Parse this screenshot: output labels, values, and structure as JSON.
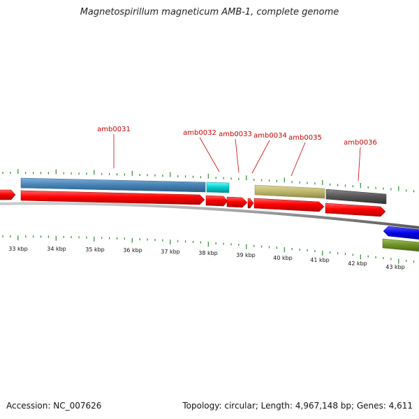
{
  "title": "Magnetospirillum magneticum AMB-1, complete genome",
  "footer": {
    "accession": "Accession: NC_007626",
    "summary": "Topology: circular; Length: 4,967,148 bp; Genes: 4,611"
  },
  "colors": {
    "cds_red": "#ff0000",
    "gene_blue": "#4682b4",
    "gene_cyan": "#00cccc",
    "gene_khaki": "#bdb76b",
    "gene_gray": "#555555",
    "gene_darkblue": "#0000e6",
    "gene_olive": "#6b8e23",
    "tick_green": "#2a8a2a",
    "backbone_gray": "#8a8a8a",
    "label_red": "#cc0000"
  },
  "gene_labels": [
    "amb0031",
    "amb0032",
    "amb0033",
    "amb0034",
    "amb0035",
    "amb0036"
  ],
  "kbp_labels": [
    "33 kbp",
    "34 kbp",
    "35 kbp",
    "36 kbp",
    "37 kbp",
    "38 kbp",
    "39 kbp",
    "40 kbp",
    "41 kbp",
    "42 kbp",
    "43 kbp"
  ]
}
